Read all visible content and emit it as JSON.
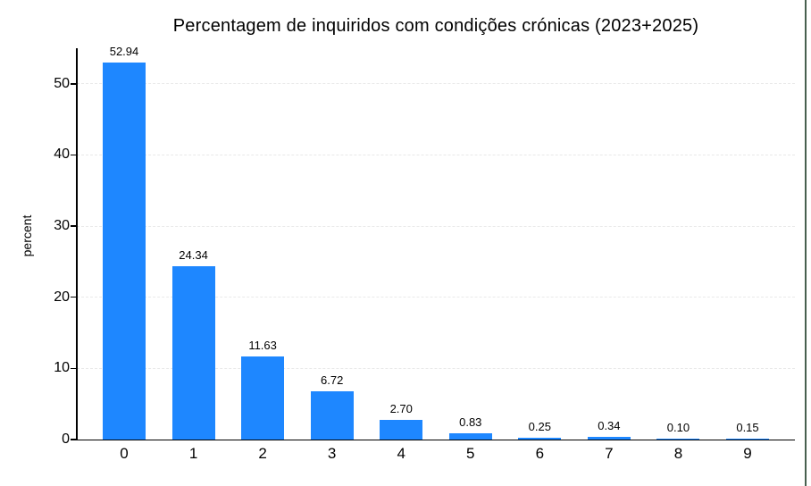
{
  "chart_data": {
    "type": "bar",
    "title": "Percentagem de inquiridos com condições crónicas (2023+2025)",
    "ylabel": "percent",
    "xlabel": "",
    "categories": [
      "0",
      "1",
      "2",
      "3",
      "4",
      "5",
      "6",
      "7",
      "8",
      "9"
    ],
    "values": [
      52.94,
      24.34,
      11.63,
      6.72,
      2.7,
      0.83,
      0.25,
      0.34,
      0.1,
      0.15
    ],
    "bar_labels": [
      "52.94",
      "24.34",
      "11.63",
      "6.72",
      "2.70",
      "0.83",
      "0.25",
      "0.34",
      "0.10",
      "0.15"
    ],
    "yticks": [
      "0",
      "10",
      "20",
      "30",
      "40",
      "50"
    ],
    "ylim": [
      0,
      55
    ],
    "grid": "horizontal-dashed",
    "legend": "none",
    "bar_color": "#1e87ff",
    "axis_color": "#000000",
    "gridline_color": "#e9e9e9",
    "background_color": "#ffffff",
    "right_border_color": "#48604f"
  }
}
